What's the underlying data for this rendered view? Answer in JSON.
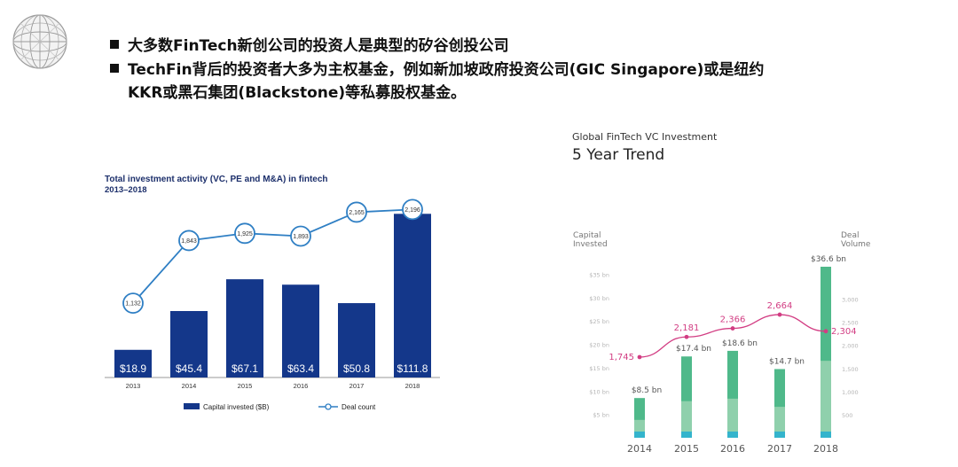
{
  "slide": {
    "bullets": [
      {
        "text": "大多数FinTech新创公司的投资人是典型的矽谷创投公司"
      },
      {
        "text": "TechFin背后的投资者大多为主权基金，例如新加坡政府投资公司(GIC  Singapore)或是纽约",
        "continuation": "KKR或黑石集团(Blackstone)等私募股权基金。"
      }
    ]
  },
  "chart_data": [
    {
      "type": "bar",
      "title": "Total investment activity (VC, PE and M&A) in fintech",
      "subtitle": "2013–2018",
      "categories": [
        "2013",
        "2014",
        "2015",
        "2016",
        "2017",
        "2018"
      ],
      "series": [
        {
          "name": "Capital invested ($B)",
          "kind": "bar",
          "values": [
            18.9,
            45.4,
            67.1,
            63.4,
            50.8,
            111.8
          ],
          "labels": [
            "$18.9",
            "$45.4",
            "$67.1",
            "$63.4",
            "$50.8",
            "$111.8"
          ]
        },
        {
          "name": "Deal count",
          "kind": "line",
          "values": [
            1132,
            1843,
            1925,
            1893,
            2165,
            2196
          ],
          "labels": [
            "1,132",
            "1,843",
            "1,925",
            "1,893",
            "2,165",
            "2,196"
          ]
        }
      ],
      "ylim": [
        0,
        115
      ],
      "y2lim": [
        600,
        2260
      ],
      "bar_color": "#14378a",
      "line_color": "#2f7fc4",
      "legend": "bottom"
    },
    {
      "type": "bar",
      "title": "Global FinTech VC Investment",
      "subtitle": "5 Year Trend",
      "ylabel": "Capital Invested",
      "y2label": "Deal Volume",
      "categories": [
        "2014",
        "2015",
        "2016",
        "2017",
        "2018"
      ],
      "series": [
        {
          "name": "Capital Invested",
          "kind": "bar",
          "values": [
            8.5,
            17.4,
            18.6,
            14.7,
            36.6
          ],
          "labels": [
            "$8.5 bn",
            "$17.4 bn",
            "$18.6 bn",
            "$14.7 bn",
            "$36.6 bn"
          ]
        },
        {
          "name": "Deal Volume",
          "kind": "line",
          "values": [
            1745,
            2181,
            2366,
            2664,
            2304
          ],
          "labels": [
            "1,745",
            "2,181",
            "2,366",
            "2,664",
            "2,304"
          ]
        }
      ],
      "yticks": [
        "$5 bn",
        "$10 bn",
        "$15 bn",
        "$20 bn",
        "$25 bn",
        "$30 bn",
        "$35 bn"
      ],
      "ytick_values": [
        5,
        10,
        15,
        20,
        25,
        30,
        35
      ],
      "y2ticks": [
        "500",
        "1,000",
        "1,500",
        "2,000",
        "2,500",
        "3,000"
      ],
      "y2tick_values": [
        500,
        1000,
        1500,
        2000,
        2500,
        3000
      ],
      "ylim": [
        0,
        36.6
      ],
      "y2lim": [
        0,
        3700
      ],
      "bar_color": "#4fb98a",
      "bar_light_color": "#8fd0ac",
      "bar_base_color": "#34b4cc",
      "line_color": "#d23d83"
    }
  ]
}
